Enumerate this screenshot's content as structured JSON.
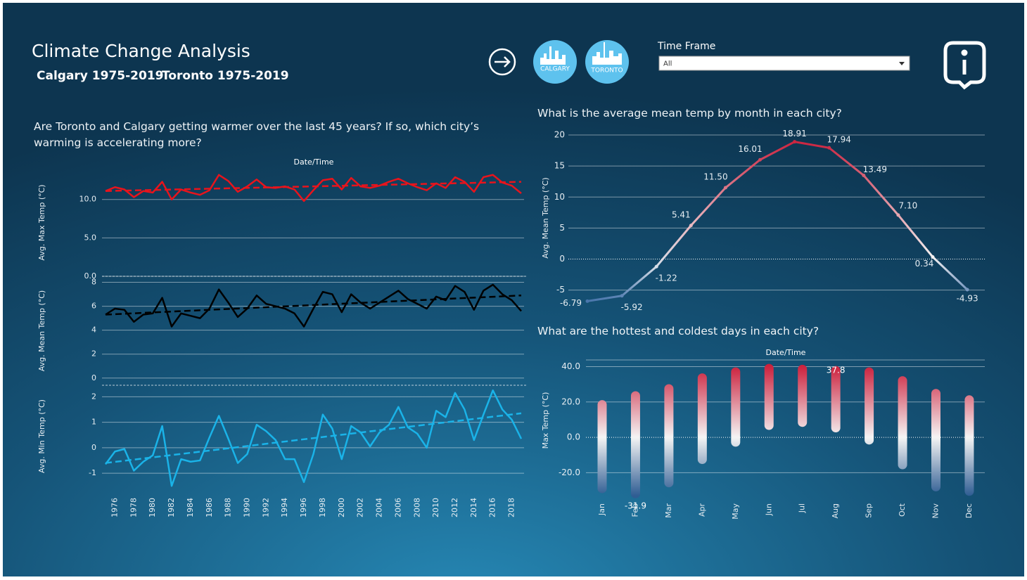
{
  "header": {
    "title": "Climate Change Analysis",
    "subtitle": [
      "Calgary 1975-2019",
      "Toronto 1975-2019"
    ],
    "logos": [
      "CALGARY",
      "TORONTO"
    ],
    "filter": {
      "label": "Time Frame",
      "value": "All"
    }
  },
  "chart_data": [
    {
      "type": "line",
      "title": "Are Toronto and Calgary getting warmer over the last 45 years? If so, which city’s warming is accelerating more?",
      "xlabel": "Date/Time",
      "x": [
        1975,
        1976,
        1977,
        1978,
        1979,
        1980,
        1981,
        1982,
        1983,
        1984,
        1985,
        1986,
        1987,
        1988,
        1989,
        1990,
        1991,
        1992,
        1993,
        1994,
        1995,
        1996,
        1997,
        1998,
        1999,
        2000,
        2001,
        2002,
        2003,
        2004,
        2005,
        2006,
        2007,
        2008,
        2009,
        2010,
        2011,
        2012,
        2013,
        2014,
        2015,
        2016,
        2017,
        2018,
        2019
      ],
      "xlim": [
        1975,
        2019
      ],
      "xticks": [
        1976,
        1978,
        1980,
        1982,
        1984,
        1986,
        1988,
        1990,
        1992,
        1994,
        1996,
        1998,
        2000,
        2002,
        2004,
        2006,
        2008,
        2010,
        2012,
        2014,
        2016,
        2018
      ],
      "grid": true,
      "panels": [
        {
          "ylabel": "Avg. Max Temp (°C)",
          "color": "#e8141c",
          "values": [
            11.1,
            11.6,
            11.3,
            10.3,
            11.1,
            10.9,
            12.3,
            10.0,
            11.3,
            10.9,
            10.6,
            11.2,
            13.2,
            12.4,
            11.0,
            11.7,
            12.6,
            11.6,
            11.5,
            11.7,
            11.3,
            9.8,
            11.2,
            12.5,
            12.7,
            11.3,
            12.8,
            11.7,
            11.5,
            11.8,
            12.3,
            12.7,
            12.1,
            11.6,
            11.2,
            12.1,
            11.5,
            12.9,
            12.3,
            11.0,
            12.9,
            13.2,
            12.2,
            11.8,
            10.8
          ],
          "trend": [
            11.1,
            12.3
          ],
          "ylim": [
            0,
            14
          ],
          "yticks": [
            {
              "value": 0,
              "label": "0.0"
            },
            {
              "value": 5,
              "label": "5.0"
            },
            {
              "value": 10,
              "label": "10.0"
            }
          ]
        },
        {
          "ylabel": "Avg. Mean Temp (°C)",
          "color": "#000000",
          "values": [
            5.3,
            5.8,
            5.7,
            4.7,
            5.3,
            5.4,
            6.7,
            4.3,
            5.4,
            5.2,
            5.0,
            5.8,
            7.4,
            6.3,
            5.1,
            5.8,
            6.9,
            6.2,
            6.0,
            5.8,
            5.4,
            4.3,
            5.8,
            7.2,
            7.0,
            5.5,
            7.0,
            6.3,
            5.8,
            6.3,
            6.8,
            7.3,
            6.6,
            6.2,
            5.8,
            6.8,
            6.5,
            7.7,
            7.2,
            5.7,
            7.3,
            7.8,
            7.0,
            6.5,
            5.6
          ],
          "trend": [
            5.3,
            6.9
          ],
          "ylim": [
            -0.6,
            8.5
          ],
          "yticks": [
            0,
            2,
            4,
            6,
            8
          ]
        },
        {
          "ylabel": "Avg. Min Temp (°C)",
          "color": "#1ab3e8",
          "values": [
            -0.65,
            -0.15,
            -0.05,
            -0.9,
            -0.55,
            -0.3,
            0.85,
            -1.5,
            -0.45,
            -0.55,
            -0.5,
            0.4,
            1.25,
            0.35,
            -0.6,
            -0.25,
            0.9,
            0.65,
            0.3,
            -0.45,
            -0.45,
            -1.35,
            -0.25,
            1.3,
            0.75,
            -0.45,
            0.85,
            0.6,
            0.05,
            0.6,
            0.9,
            1.6,
            0.8,
            0.55,
            0.0,
            1.45,
            1.2,
            2.15,
            1.5,
            0.3,
            1.3,
            2.25,
            1.5,
            1.1,
            0.35
          ],
          "trend": [
            -0.6,
            1.35
          ],
          "ylim": [
            -1.55,
            2.45
          ],
          "yticks": [
            -1,
            0,
            1,
            2
          ]
        }
      ]
    },
    {
      "type": "line",
      "title": "What is the average mean temp by month in each city?",
      "ylabel": "Avg. Mean Temp (°C)",
      "categories": [
        null,
        null,
        null,
        null,
        null,
        null,
        null,
        null,
        null,
        null,
        null,
        null
      ],
      "values": [
        -6.79,
        -5.92,
        -1.22,
        5.41,
        11.5,
        16.01,
        18.91,
        17.94,
        13.49,
        7.1,
        0.34,
        -4.93
      ],
      "value_labels": [
        "-6.79",
        "-5.92",
        "-1.22",
        "5.41",
        "11.50",
        "16.01",
        "18.91",
        "17.94",
        "13.49",
        "7.10",
        "0.34",
        "-4.93"
      ],
      "ylim": [
        -7.2,
        20.8
      ],
      "yticks": [
        -5,
        0,
        5,
        10,
        15,
        20
      ],
      "grid": true,
      "colors": [
        "#3f6ea8",
        "#f4f4f4",
        "#c8102e"
      ]
    },
    {
      "type": "strip",
      "title": "What are the hottest and coldest days in each city?",
      "xlabel": "Date/Time",
      "ylabel": "Max Temp (°C)",
      "categories": [
        "Jan",
        "Feb",
        "Mar",
        "Apr",
        "May",
        "Jun",
        "Jul",
        "Aug",
        "Sep",
        "Oct",
        "Nov",
        "Dec"
      ],
      "low": [
        -29,
        -31.9,
        -25.7,
        -12.5,
        -2.7,
        6.8,
        8.5,
        5.4,
        -1.5,
        -15.5,
        -28,
        -30.5
      ],
      "high": [
        18.5,
        23.5,
        27.5,
        33.6,
        37,
        39,
        38.5,
        37.8,
        37,
        32,
        24.8,
        21.2
      ],
      "annotations": [
        {
          "text": "-31.9",
          "category": 1,
          "value": -31.9
        },
        {
          "text": "37.8",
          "category": 7,
          "value": 37.8
        }
      ],
      "ylim": [
        -33,
        43.8
      ],
      "yticks": [
        {
          "value": -20,
          "label": "-20.0"
        },
        {
          "value": 0,
          "label": "0.0"
        },
        {
          "value": 20,
          "label": "20.0"
        },
        {
          "value": 40,
          "label": "40.0"
        }
      ],
      "grid": true,
      "colors": [
        "#2f5d93",
        "#f4f4f4",
        "#c8102e"
      ]
    }
  ]
}
